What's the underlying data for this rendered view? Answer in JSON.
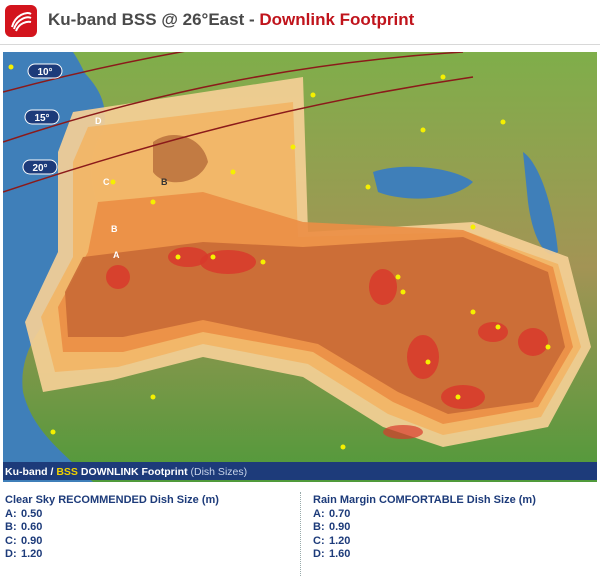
{
  "header": {
    "title": "Ku-band BSS @ 26°East",
    "separator": "-",
    "title_highlight": "Downlink Footprint"
  },
  "map": {
    "elevation_labels": [
      "10°",
      "15°",
      "20°"
    ],
    "zone_labels": [
      "D",
      "C",
      "B",
      "B",
      "A"
    ]
  },
  "caption": {
    "prefix": "Ku-band /",
    "highlight": "BSS",
    "main": "DOWNLINK Footprint",
    "note": "(Dish Sizes)"
  },
  "tables": [
    {
      "title": "Clear Sky RECOMMENDED Dish Size (m)",
      "rows": [
        {
          "zone": "A:",
          "size": "0.50"
        },
        {
          "zone": "B:",
          "size": "0.60"
        },
        {
          "zone": "C:",
          "size": "0.90"
        },
        {
          "zone": "D:",
          "size": "1.20"
        }
      ]
    },
    {
      "title": "Rain Margin COMFORTABLE Dish Size (m)",
      "rows": [
        {
          "zone": "A:",
          "size": "0.70"
        },
        {
          "zone": "B:",
          "size": "0.90"
        },
        {
          "zone": "C:",
          "size": "1.20"
        },
        {
          "zone": "D:",
          "size": "1.60"
        }
      ]
    }
  ]
}
